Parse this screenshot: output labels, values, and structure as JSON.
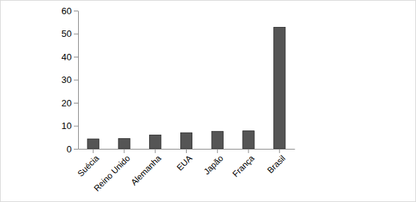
{
  "chart_data": {
    "type": "bar",
    "categories": [
      "Suécia",
      "Reino Unido",
      "Alemanha",
      "EUA",
      "Japão",
      "França",
      "Brasil"
    ],
    "values": [
      4.3,
      4.5,
      6,
      7,
      7.6,
      7.8,
      52.8
    ],
    "color": "#555555",
    "ylim": [
      0,
      60
    ],
    "yticks": [
      0,
      10,
      20,
      30,
      40,
      50,
      60
    ],
    "grid": false
  }
}
